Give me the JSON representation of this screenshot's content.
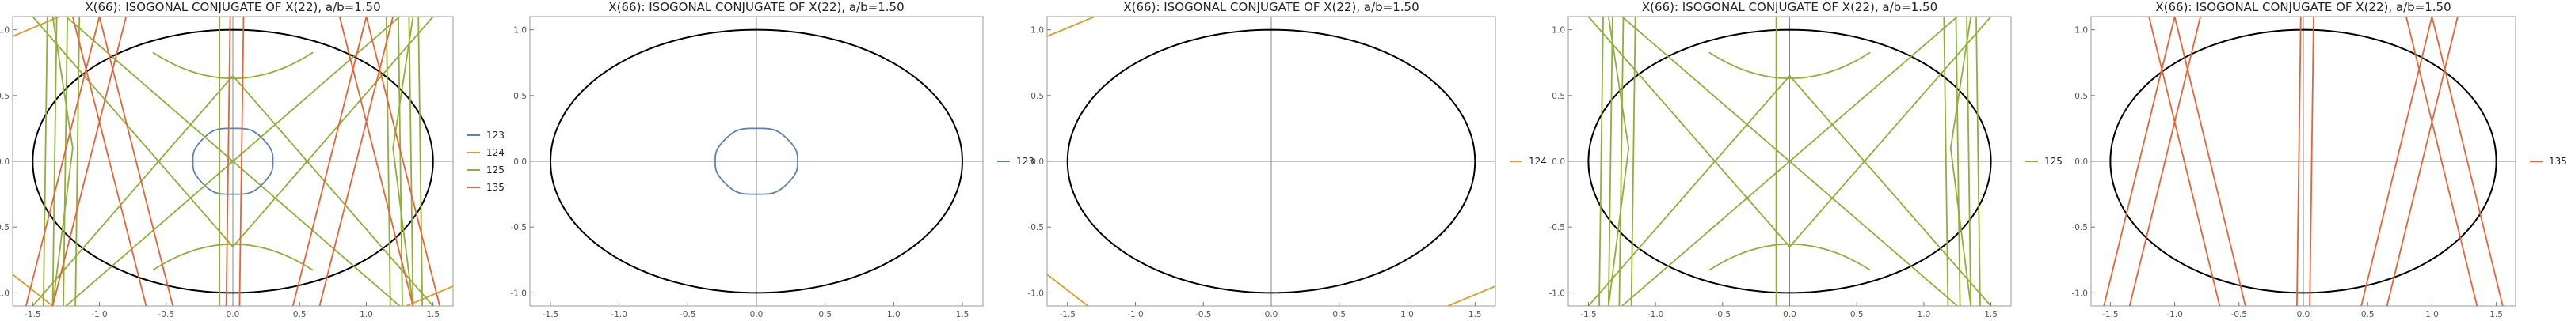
{
  "colors": {
    "s123": "#5E81B5",
    "s124": "#E19C24",
    "s125": "#8FB032",
    "s135": "#EB6235",
    "ellipse": "#000000",
    "frame": "#999999"
  },
  "chart_data": [
    {
      "type": "line",
      "title": "X(66): ISOGONAL CONJUGATE OF X(22), a/b=1.50",
      "xlim": [
        -1.65,
        1.65
      ],
      "ylim": [
        -1.1,
        1.1
      ],
      "xticks": [
        "-1.5",
        "-1.0",
        "-0.5",
        "0.0",
        "0.5",
        "1.0",
        "1.5"
      ],
      "yticks": [
        "-1.0",
        "-0.5",
        "0.0",
        "0.5",
        "1.0"
      ],
      "ellipse": {
        "a": 1.5,
        "b": 1.0
      },
      "legend": [
        {
          "name": "123",
          "color": "#5E81B5"
        },
        {
          "name": "124",
          "color": "#E19C24"
        },
        {
          "name": "125",
          "color": "#8FB032"
        },
        {
          "name": "135",
          "color": "#EB6235"
        }
      ],
      "series": [
        {
          "name": "123",
          "shape": "diamond-ring"
        },
        {
          "name": "124",
          "shape": "corner-segments"
        },
        {
          "name": "125",
          "shape": "line-family"
        },
        {
          "name": "135",
          "shape": "steep-lines"
        }
      ]
    },
    {
      "type": "line",
      "title": "X(66): ISOGONAL CONJUGATE OF X(22), a/b=1.50",
      "xlim": [
        -1.65,
        1.65
      ],
      "ylim": [
        -1.1,
        1.1
      ],
      "xticks": [
        "-1.5",
        "-1.0",
        "-0.5",
        "0.0",
        "0.5",
        "1.0",
        "1.5"
      ],
      "yticks": [
        "-1.0",
        "-0.5",
        "0.0",
        "0.5",
        "1.0"
      ],
      "ellipse": {
        "a": 1.5,
        "b": 1.0
      },
      "legend": [
        {
          "name": "123",
          "color": "#5E81B5"
        }
      ],
      "series": [
        {
          "name": "123",
          "shape": "diamond-ring"
        }
      ]
    },
    {
      "type": "line",
      "title": "X(66): ISOGONAL CONJUGATE OF X(22), a/b=1.50",
      "xlim": [
        -1.65,
        1.65
      ],
      "ylim": [
        -1.1,
        1.1
      ],
      "xticks": [
        "-1.5",
        "-1.0",
        "-0.5",
        "0.0",
        "0.5",
        "1.0",
        "1.5"
      ],
      "yticks": [
        "-1.0",
        "-0.5",
        "0.0",
        "0.5",
        "1.0"
      ],
      "ellipse": {
        "a": 1.5,
        "b": 1.0
      },
      "legend": [
        {
          "name": "124",
          "color": "#E19C24"
        }
      ],
      "series": [
        {
          "name": "124",
          "shape": "corner-segments"
        }
      ]
    },
    {
      "type": "line",
      "title": "X(66): ISOGONAL CONJUGATE OF X(22), a/b=1.50",
      "xlim": [
        -1.65,
        1.65
      ],
      "ylim": [
        -1.1,
        1.1
      ],
      "xticks": [
        "-1.5",
        "-1.0",
        "-0.5",
        "0.0",
        "0.5",
        "1.0",
        "1.5"
      ],
      "yticks": [
        "-1.0",
        "-0.5",
        "0.0",
        "0.5",
        "1.0"
      ],
      "ellipse": {
        "a": 1.5,
        "b": 1.0
      },
      "legend": [
        {
          "name": "125",
          "color": "#8FB032"
        }
      ],
      "series": [
        {
          "name": "125",
          "shape": "line-family"
        }
      ]
    },
    {
      "type": "line",
      "title": "X(66): ISOGONAL CONJUGATE OF X(22), a/b=1.50",
      "xlim": [
        -1.65,
        1.65
      ],
      "ylim": [
        -1.1,
        1.1
      ],
      "xticks": [
        "-1.5",
        "-1.0",
        "-0.5",
        "0.0",
        "0.5",
        "1.0",
        "1.5"
      ],
      "yticks": [
        "-1.0",
        "-0.5",
        "0.0",
        "0.5",
        "1.0"
      ],
      "ellipse": {
        "a": 1.5,
        "b": 1.0
      },
      "legend": [
        {
          "name": "135",
          "color": "#EB6235"
        }
      ],
      "series": [
        {
          "name": "135",
          "shape": "steep-lines"
        }
      ]
    }
  ]
}
